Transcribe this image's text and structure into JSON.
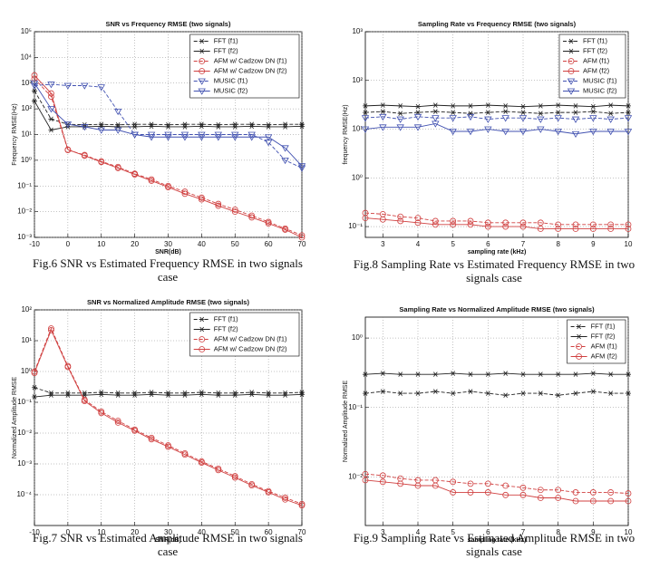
{
  "chart_data": [
    {
      "type": "line",
      "title": "SNR vs Frequency RMSE (two signals)",
      "xlabel": "SNR(dB)",
      "ylabel": "Frequency RMSE(Hz)",
      "caption": "Fig.6 SNR vs Estimated Frequency RMSE in two signals case",
      "x": [
        -10,
        -5,
        0,
        5,
        10,
        15,
        20,
        25,
        30,
        35,
        40,
        45,
        50,
        55,
        60,
        65,
        70
      ],
      "xlim": [
        -10,
        70
      ],
      "xticks": [
        -10,
        0,
        10,
        20,
        30,
        40,
        50,
        60,
        70
      ],
      "ylog": true,
      "ylim": [
        0.001,
        100000
      ],
      "yticks": [
        {
          "value": 0.001,
          "label": "10⁻³"
        },
        {
          "value": 0.01,
          "label": "10⁻²"
        },
        {
          "value": 0.1,
          "label": "10⁻¹"
        },
        {
          "value": 1,
          "label": "10⁰"
        },
        {
          "value": 10,
          "label": "10¹"
        },
        {
          "value": 100,
          "label": "10²"
        },
        {
          "value": 1000,
          "label": "10³"
        },
        {
          "value": 10000,
          "label": "10⁴"
        },
        {
          "value": 100000,
          "label": "10⁵"
        }
      ],
      "grid": true,
      "legend": "upper right",
      "series": [
        {
          "name": "FFT (f1)",
          "color": "#222222",
          "dashed": true,
          "marker": "star",
          "values": [
            500,
            40,
            25,
            24,
            25,
            24,
            25,
            25,
            24,
            25,
            25,
            24,
            25,
            25,
            24,
            25,
            25
          ]
        },
        {
          "name": "FFT (f2)",
          "color": "#222222",
          "dashed": false,
          "marker": "star",
          "values": [
            200,
            15,
            20,
            20,
            21,
            20,
            20,
            21,
            20,
            20,
            21,
            20,
            20,
            21,
            20,
            20,
            21
          ]
        },
        {
          "name": "AFM w/ Cadzow DN (f1)",
          "color": "#d04040",
          "dashed": true,
          "marker": "circle",
          "values": [
            1500,
            300,
            2.5,
            1.6,
            0.9,
            0.55,
            0.3,
            0.18,
            0.1,
            0.06,
            0.035,
            0.02,
            0.012,
            0.007,
            0.004,
            0.0022,
            0.0012
          ]
        },
        {
          "name": "AFM w/ Cadzow DN (f2)",
          "color": "#d04040",
          "dashed": false,
          "marker": "circle",
          "values": [
            2000,
            400,
            2.6,
            1.5,
            0.85,
            0.5,
            0.28,
            0.16,
            0.09,
            0.05,
            0.03,
            0.017,
            0.01,
            0.006,
            0.0035,
            0.002,
            0.001
          ]
        },
        {
          "name": "MUSIC (f1)",
          "color": "#4050b0",
          "dashed": true,
          "marker": "triangle",
          "values": [
            800,
            900,
            800,
            800,
            700,
            80,
            10,
            10,
            10,
            10,
            10,
            10,
            10,
            10,
            5,
            1,
            0.5
          ]
        },
        {
          "name": "MUSIC (f2)",
          "color": "#4050b0",
          "dashed": false,
          "marker": "triangle",
          "values": [
            1000,
            100,
            25,
            20,
            15,
            15,
            10,
            8,
            8,
            8,
            8,
            8,
            8,
            8,
            8,
            3,
            0.6
          ]
        }
      ]
    },
    {
      "type": "line",
      "title": "Sampling Rate vs Frequency RMSE (two signals)",
      "xlabel": "sampling rate (kHz)",
      "ylabel": "frequency RMSE(Hz)",
      "caption": "Fig.8 Sampling Rate vs Estimated Frequency RMSE in two signals case",
      "x": [
        2.5,
        3,
        3.5,
        4,
        4.5,
        5,
        5.5,
        6,
        6.5,
        7,
        7.5,
        8,
        8.5,
        9,
        9.5,
        10
      ],
      "xlim": [
        2.5,
        10
      ],
      "xticks": [
        3,
        4,
        5,
        6,
        7,
        8,
        9,
        10
      ],
      "ylog": true,
      "ylim": [
        0.06,
        1000
      ],
      "yticks": [
        {
          "value": 0.1,
          "label": "10⁻¹"
        },
        {
          "value": 1,
          "label": "10⁰"
        },
        {
          "value": 10,
          "label": "10¹"
        },
        {
          "value": 100,
          "label": "10²"
        },
        {
          "value": 1000,
          "label": "10³"
        }
      ],
      "grid": true,
      "legend": "upper right",
      "series": [
        {
          "name": "FFT (f1)",
          "color": "#222222",
          "dashed": true,
          "marker": "star",
          "values": [
            22,
            23,
            21,
            22,
            23,
            22,
            21,
            22,
            23,
            22,
            21,
            22,
            22,
            23,
            21,
            22
          ]
        },
        {
          "name": "FFT (f2)",
          "color": "#222222",
          "dashed": false,
          "marker": "star",
          "values": [
            30,
            31,
            30,
            29,
            31,
            30,
            30,
            31,
            30,
            29,
            30,
            31,
            30,
            29,
            31,
            30
          ]
        },
        {
          "name": "AFM (f1)",
          "color": "#d04040",
          "dashed": true,
          "marker": "circle",
          "values": [
            0.19,
            0.18,
            0.16,
            0.15,
            0.13,
            0.13,
            0.13,
            0.12,
            0.12,
            0.12,
            0.12,
            0.11,
            0.11,
            0.11,
            0.11,
            0.11
          ]
        },
        {
          "name": "AFM (f2)",
          "color": "#d04040",
          "dashed": false,
          "marker": "circle",
          "values": [
            0.15,
            0.14,
            0.13,
            0.12,
            0.11,
            0.11,
            0.11,
            0.1,
            0.1,
            0.1,
            0.09,
            0.09,
            0.09,
            0.09,
            0.09,
            0.09
          ]
        },
        {
          "name": "MUSIC (f1)",
          "color": "#4050b0",
          "dashed": true,
          "marker": "triangle",
          "values": [
            17,
            18,
            16,
            18,
            17,
            17,
            18,
            16,
            17,
            17,
            16,
            17,
            16,
            17,
            16,
            17
          ]
        },
        {
          "name": "MUSIC (f2)",
          "color": "#4050b0",
          "dashed": false,
          "marker": "triangle",
          "values": [
            10,
            11,
            11,
            11,
            13,
            9,
            9,
            10,
            9,
            9,
            10,
            9,
            8,
            9,
            9,
            9
          ]
        }
      ]
    },
    {
      "type": "line",
      "title": "SNR vs Normalized Amplitude RMSE (two signals)",
      "xlabel": "SNR(dB)",
      "ylabel": "Normalized Amplitude RMSE",
      "caption": "Fig.7 SNR vs Estimated Amplitude RMSE in two signals case",
      "x": [
        -10,
        -5,
        0,
        5,
        10,
        15,
        20,
        25,
        30,
        35,
        40,
        45,
        50,
        55,
        60,
        65,
        70
      ],
      "xlim": [
        -10,
        70
      ],
      "xticks": [
        -10,
        0,
        10,
        20,
        30,
        40,
        50,
        60,
        70
      ],
      "ylog": true,
      "ylim": [
        1e-05,
        100
      ],
      "yticks": [
        {
          "value": 0.0001,
          "label": "10⁻⁴"
        },
        {
          "value": 0.001,
          "label": "10⁻³"
        },
        {
          "value": 0.01,
          "label": "10⁻²"
        },
        {
          "value": 0.1,
          "label": "10⁻¹"
        },
        {
          "value": 1,
          "label": "10⁰"
        },
        {
          "value": 10,
          "label": "10¹"
        },
        {
          "value": 100,
          "label": "10²"
        }
      ],
      "grid": true,
      "legend": "upper right",
      "series": [
        {
          "name": "FFT (f1)",
          "color": "#222222",
          "dashed": true,
          "marker": "star",
          "values": [
            0.3,
            0.2,
            0.2,
            0.2,
            0.21,
            0.2,
            0.2,
            0.21,
            0.2,
            0.2,
            0.21,
            0.2,
            0.2,
            0.21,
            0.2,
            0.2,
            0.21
          ]
        },
        {
          "name": "FFT (f2)",
          "color": "#222222",
          "dashed": false,
          "marker": "star",
          "values": [
            0.15,
            0.17,
            0.17,
            0.17,
            0.18,
            0.17,
            0.17,
            0.18,
            0.17,
            0.17,
            0.18,
            0.17,
            0.17,
            0.18,
            0.17,
            0.17,
            0.18
          ]
        },
        {
          "name": "AFM w/ Cadzow DN (f1)",
          "color": "#d04040",
          "dashed": true,
          "marker": "circle",
          "values": [
            1,
            25,
            1.5,
            0.12,
            0.05,
            0.025,
            0.013,
            0.007,
            0.004,
            0.0022,
            0.0012,
            0.0007,
            0.0004,
            0.00022,
            0.00013,
            8e-05,
            5e-05
          ]
        },
        {
          "name": "AFM w/ Cadzow DN (f2)",
          "color": "#d04040",
          "dashed": false,
          "marker": "circle",
          "values": [
            0.9,
            22,
            1.4,
            0.11,
            0.045,
            0.022,
            0.012,
            0.0063,
            0.0036,
            0.002,
            0.0011,
            0.00063,
            0.00036,
            0.0002,
            0.00012,
            7e-05,
            4.5e-05
          ]
        }
      ]
    },
    {
      "type": "line",
      "title": "Sampling Rate vs Normalized Amplitude RMSE (two signals)",
      "xlabel": "sampling rate (kHz)",
      "ylabel": "Normalized Amplitude RMSE",
      "caption": "Fig.9 Sampling Rate vs Estimated Amplitude RMSE in two signals case",
      "x": [
        2.5,
        3,
        3.5,
        4,
        4.5,
        5,
        5.5,
        6,
        6.5,
        7,
        7.5,
        8,
        8.5,
        9,
        9.5,
        10
      ],
      "xlim": [
        2.5,
        10
      ],
      "xticks": [
        3,
        4,
        5,
        6,
        7,
        8,
        9,
        10
      ],
      "ylog": true,
      "ylim": [
        0.002,
        2
      ],
      "yticks": [
        {
          "value": 0.01,
          "label": "10⁻²"
        },
        {
          "value": 0.1,
          "label": "10⁻¹"
        },
        {
          "value": 1,
          "label": "10⁰"
        }
      ],
      "grid": true,
      "legend": "upper right",
      "series": [
        {
          "name": "FFT (f1)",
          "color": "#222222",
          "dashed": true,
          "marker": "star",
          "values": [
            0.16,
            0.17,
            0.16,
            0.16,
            0.17,
            0.16,
            0.17,
            0.16,
            0.15,
            0.16,
            0.16,
            0.15,
            0.16,
            0.17,
            0.16,
            0.16
          ]
        },
        {
          "name": "FFT (f2)",
          "color": "#222222",
          "dashed": false,
          "marker": "star",
          "values": [
            0.3,
            0.31,
            0.3,
            0.3,
            0.3,
            0.31,
            0.3,
            0.3,
            0.31,
            0.3,
            0.3,
            0.3,
            0.3,
            0.31,
            0.3,
            0.3
          ]
        },
        {
          "name": "AFM (f1)",
          "color": "#d04040",
          "dashed": true,
          "marker": "circle",
          "values": [
            0.011,
            0.0105,
            0.0095,
            0.009,
            0.009,
            0.0085,
            0.008,
            0.008,
            0.0075,
            0.007,
            0.0065,
            0.0065,
            0.006,
            0.006,
            0.006,
            0.0058
          ]
        },
        {
          "name": "AFM (f2)",
          "color": "#d04040",
          "dashed": false,
          "marker": "circle",
          "values": [
            0.009,
            0.0085,
            0.008,
            0.0075,
            0.0075,
            0.006,
            0.006,
            0.006,
            0.0055,
            0.0055,
            0.005,
            0.005,
            0.0045,
            0.0045,
            0.0045,
            0.0045
          ]
        }
      ]
    }
  ]
}
